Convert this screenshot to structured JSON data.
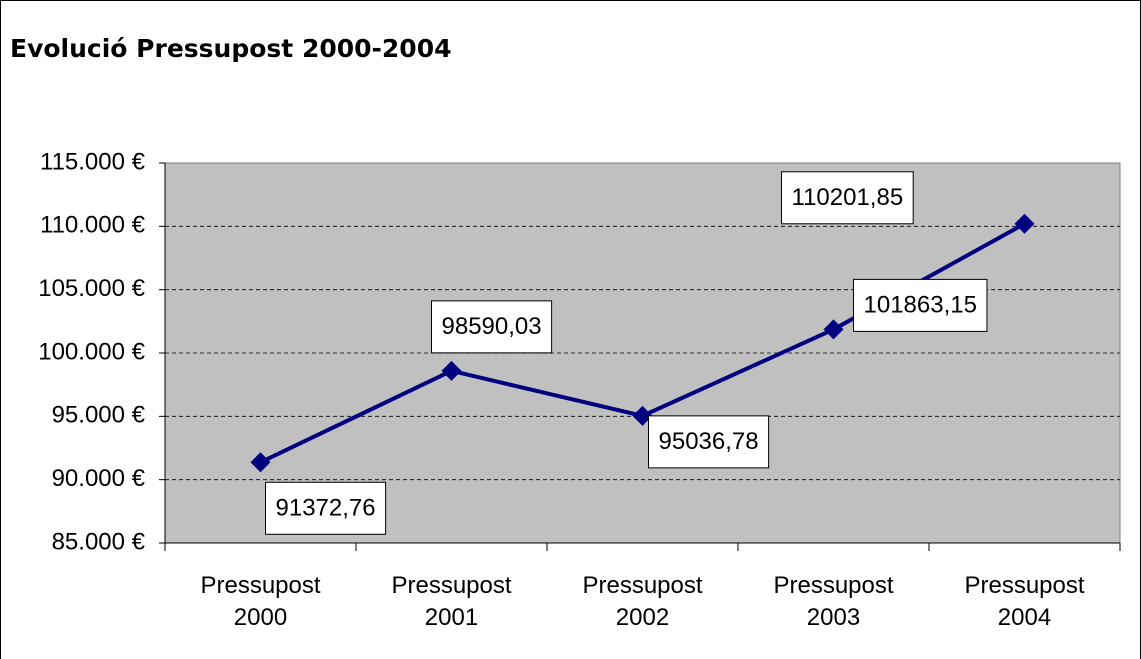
{
  "chart_data": {
    "type": "line",
    "title": "Evolució Pressupost 2000-2004",
    "categories": [
      "Pressupost 2000",
      "Pressupost 2001",
      "Pressupost 2002",
      "Pressupost 2003",
      "Pressupost 2004"
    ],
    "series": [
      {
        "color": "#000080",
        "values": [
          91372.76,
          98590.03,
          95036.78,
          101863.15,
          110201.85
        ],
        "value_labels": [
          "91372,76",
          "98590,03",
          "95036,78",
          "101863,15",
          "110201,85"
        ]
      }
    ],
    "ylim": [
      85000,
      115000
    ],
    "yticks": [
      {
        "value": 85000,
        "label": "85.000 €"
      },
      {
        "value": 90000,
        "label": "90.000 €"
      },
      {
        "value": 95000,
        "label": "95.000 €"
      },
      {
        "value": 100000,
        "label": "100.000 €"
      },
      {
        "value": 105000,
        "label": "105.000 €"
      },
      {
        "value": 110000,
        "label": "110.000 €"
      },
      {
        "value": 115000,
        "label": "115.000 €"
      }
    ],
    "grid": true,
    "plot_background": "#c0c0c0"
  }
}
